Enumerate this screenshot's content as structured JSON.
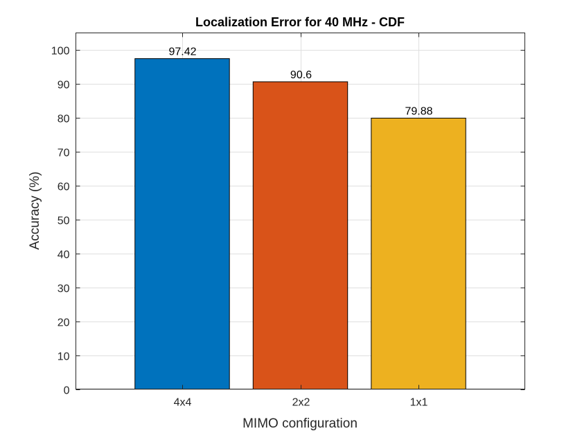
{
  "chart_data": {
    "type": "bar",
    "title": "Localization Error for 40 MHz - CDF",
    "xlabel": "MIMO configuration",
    "ylabel": "Accuracy (%)",
    "categories": [
      "4x4",
      "2x2",
      "1x1"
    ],
    "values": [
      97.42,
      90.6,
      79.88
    ],
    "data_labels": [
      "97.42",
      "90.6",
      "79.88"
    ],
    "colors": [
      "#0072BD",
      "#D95319",
      "#EDB120"
    ],
    "ylim": [
      0,
      105
    ],
    "xlim": [
      0.1,
      3.9
    ],
    "yticks": [
      0,
      10,
      20,
      30,
      40,
      50,
      60,
      70,
      80,
      90,
      100
    ],
    "ytick_labels": [
      "0",
      "10",
      "20",
      "30",
      "40",
      "50",
      "60",
      "70",
      "80",
      "90",
      "100"
    ],
    "grid": true,
    "legend": "none"
  }
}
